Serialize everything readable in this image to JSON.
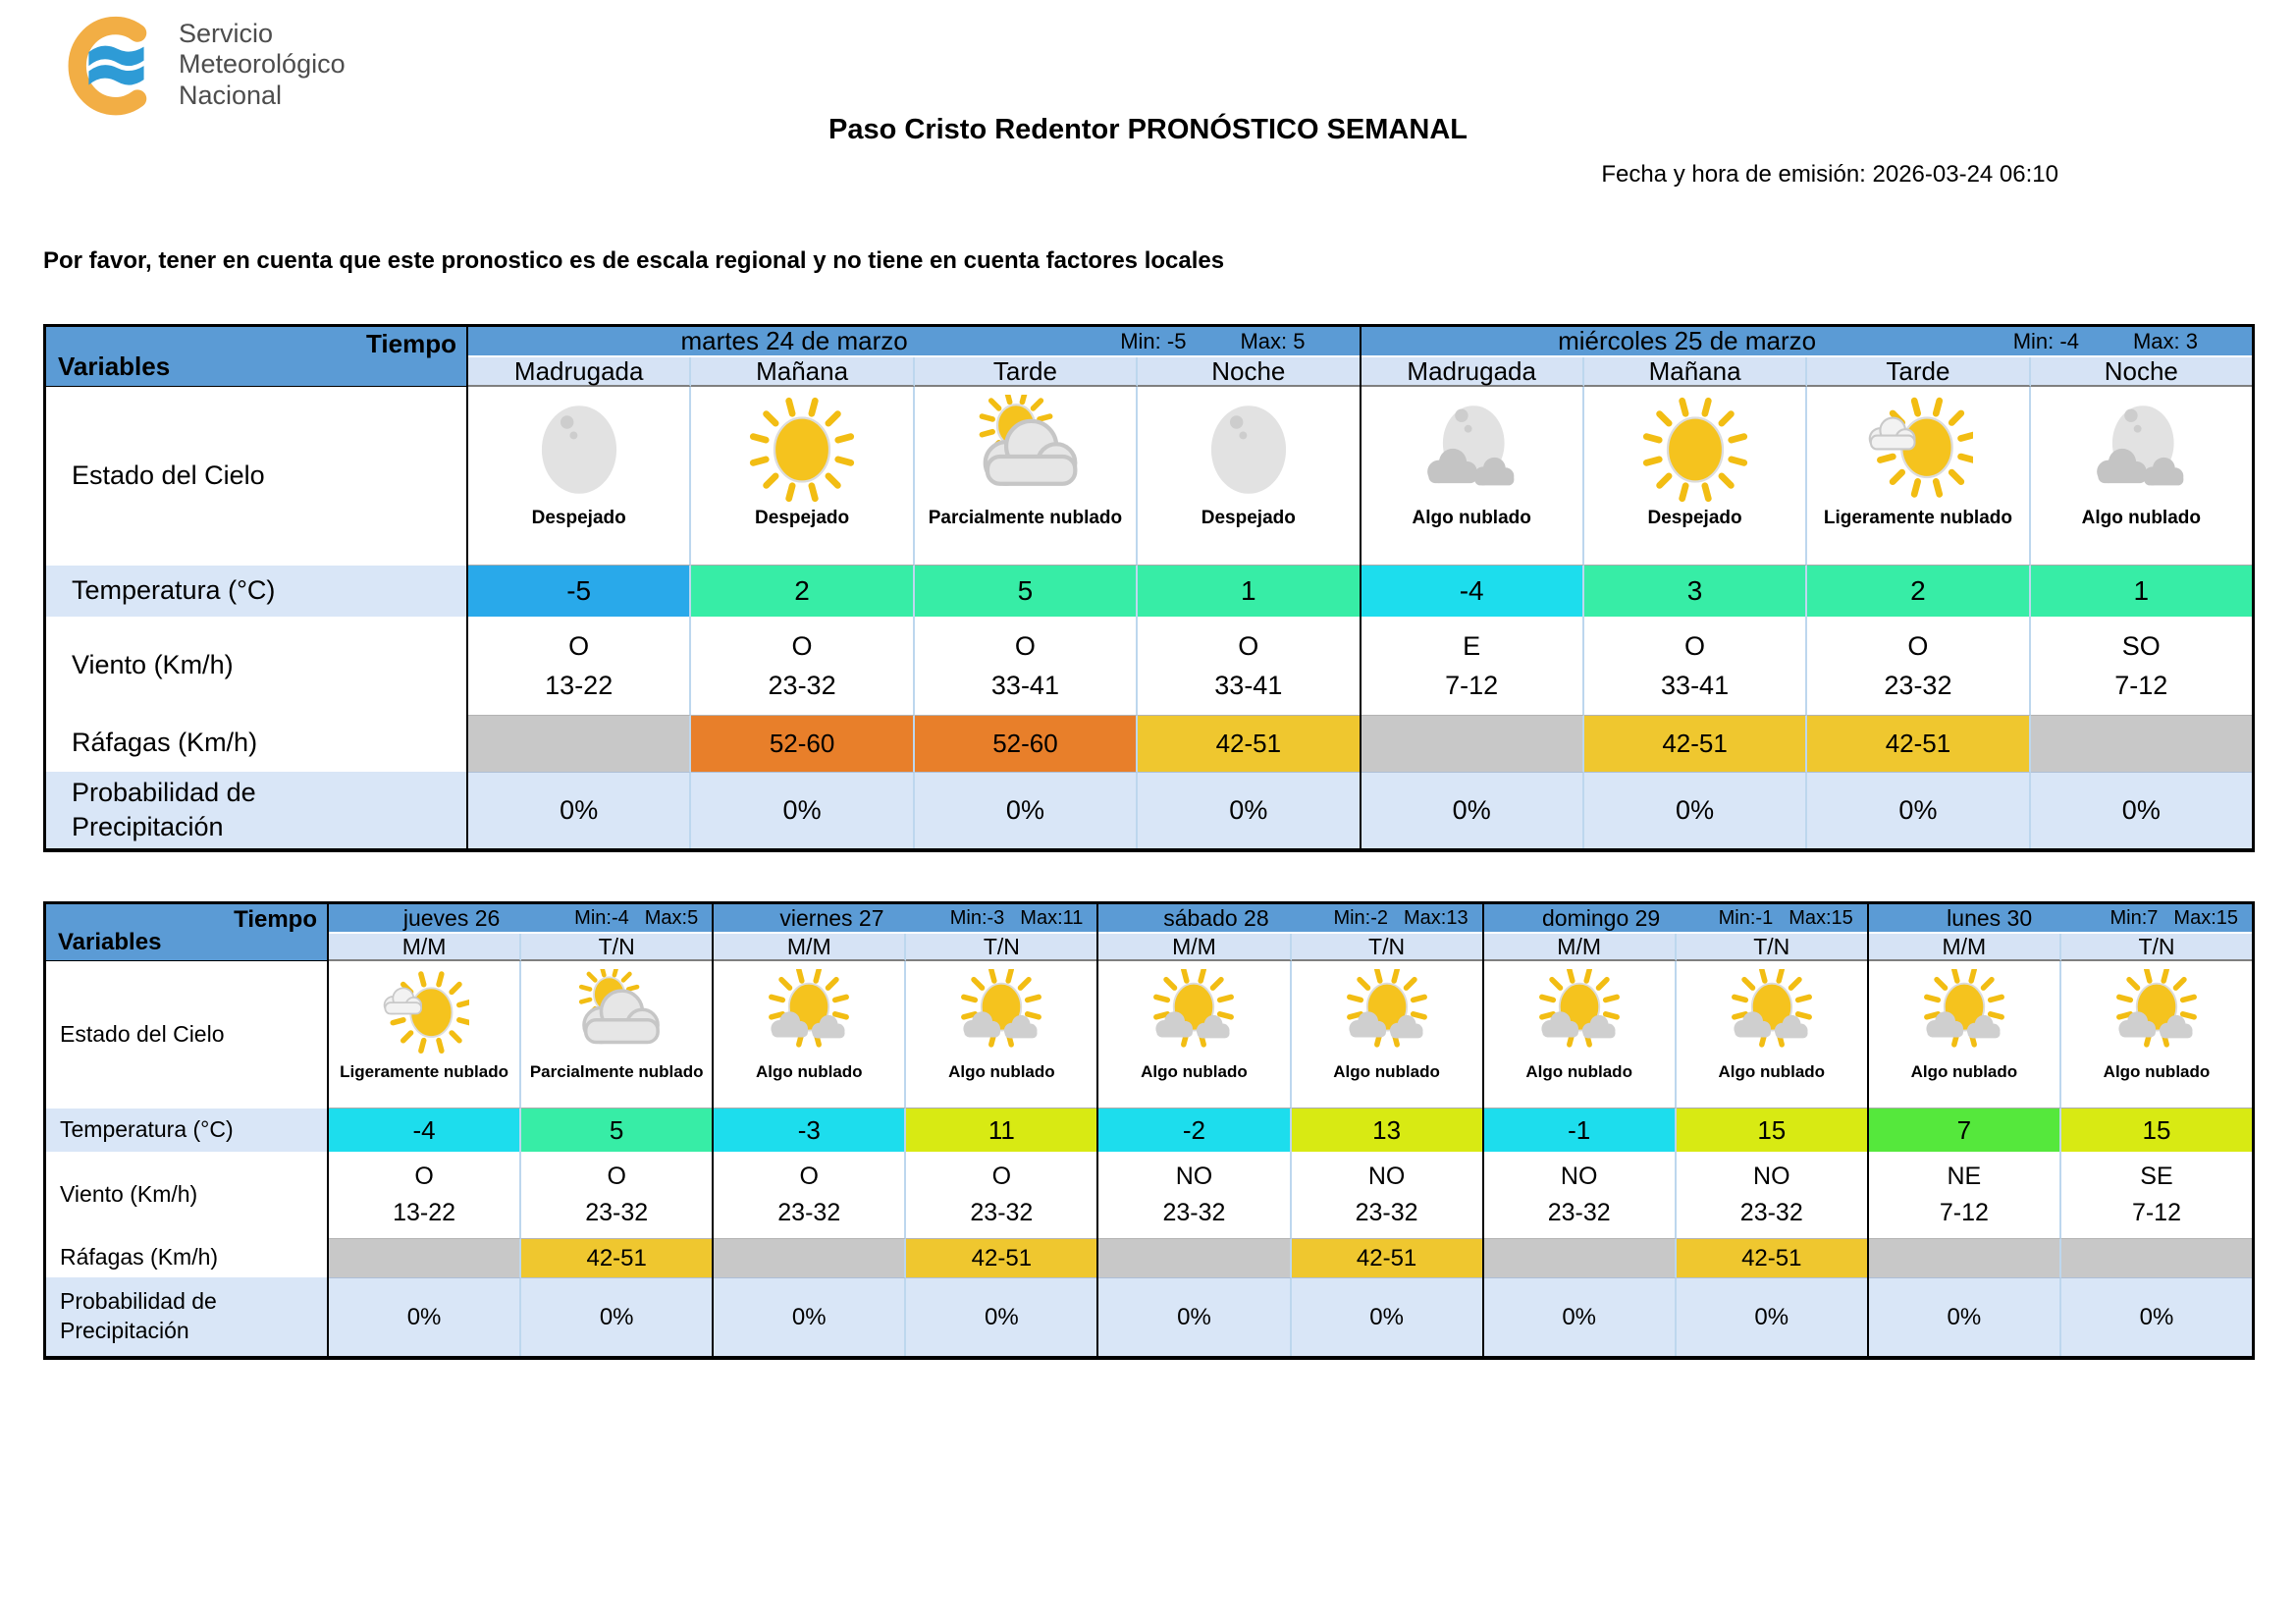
{
  "logo": {
    "lines": [
      "Servicio",
      "Meteorológico",
      "Nacional"
    ],
    "orange": "#F2AE45",
    "blue": "#2E9BD6"
  },
  "header": {
    "title": "Paso Cristo Redentor PRONÓSTICO SEMANAL",
    "emission": "Fecha y hora de emisión: 2026-03-24 06:10",
    "warning": "Por favor, tener en cuenta que este pronostico es de escala regional y no tiene en cuenta factores locales"
  },
  "corner": {
    "tiempo": "Tiempo",
    "variables": "Variables"
  },
  "row_labels": {
    "sky": "Estado del Cielo",
    "temp": "Temperatura (°C)",
    "wind": "Viento (Km/h)",
    "gust": "Ráfagas (Km/h)",
    "pop": [
      "Probabilidad de",
      "Precipitación"
    ]
  },
  "palette": {
    "header_blue": "#5B9BD5",
    "period_bg": "#D6E3F5",
    "light_blue_row": "#D9E6F7",
    "temp_blue": "#29A9EA",
    "temp_cyan": "#1DDDED",
    "temp_mint": "#37EDA6",
    "temp_lime": "#55E83C",
    "temp_chartreuse": "#D8EA13",
    "gust_orange": "#E87F2A",
    "gust_yellow": "#EFC72F",
    "empty_gray": "#C8C8C8",
    "white": "#FFFFFF"
  },
  "table1": {
    "days": [
      {
        "name": "martes 24 de marzo",
        "min": "Min: -5",
        "max": "Max: 5",
        "columns": [
          {
            "period": "Madrugada",
            "icon": "moon",
            "sky": "Despejado",
            "temp": "-5",
            "temp_color": "temp_blue",
            "wind_dir": "O",
            "wind_range": "13-22",
            "gust": "",
            "gust_color": "empty_gray",
            "pop": "0%"
          },
          {
            "period": "Mañana",
            "icon": "sun",
            "sky": "Despejado",
            "temp": "2",
            "temp_color": "temp_mint",
            "wind_dir": "O",
            "wind_range": "23-32",
            "gust": "52-60",
            "gust_color": "gust_orange",
            "pop": "0%"
          },
          {
            "period": "Tarde",
            "icon": "sun-behind-cloud",
            "sky": "Parcialmente nublado",
            "temp": "5",
            "temp_color": "temp_mint",
            "wind_dir": "O",
            "wind_range": "33-41",
            "gust": "52-60",
            "gust_color": "gust_orange",
            "pop": "0%"
          },
          {
            "period": "Noche",
            "icon": "moon",
            "sky": "Despejado",
            "temp": "1",
            "temp_color": "temp_mint",
            "wind_dir": "O",
            "wind_range": "33-41",
            "gust": "42-51",
            "gust_color": "gust_yellow",
            "pop": "0%"
          }
        ]
      },
      {
        "name": "miércoles 25 de marzo",
        "min": "Min: -4",
        "max": "Max: 3",
        "columns": [
          {
            "period": "Madrugada",
            "icon": "moon-clouds",
            "sky": "Algo nublado",
            "temp": "-4",
            "temp_color": "temp_cyan",
            "wind_dir": "E",
            "wind_range": "7-12",
            "gust": "",
            "gust_color": "empty_gray",
            "pop": "0%"
          },
          {
            "period": "Mañana",
            "icon": "sun",
            "sky": "Despejado",
            "temp": "3",
            "temp_color": "temp_mint",
            "wind_dir": "O",
            "wind_range": "33-41",
            "gust": "42-51",
            "gust_color": "gust_yellow",
            "pop": "0%"
          },
          {
            "period": "Tarde",
            "icon": "sun-small-cloud",
            "sky": "Ligeramente nublado",
            "temp": "2",
            "temp_color": "temp_mint",
            "wind_dir": "O",
            "wind_range": "23-32",
            "gust": "42-51",
            "gust_color": "gust_yellow",
            "pop": "0%"
          },
          {
            "period": "Noche",
            "icon": "moon-clouds",
            "sky": "Algo nublado",
            "temp": "1",
            "temp_color": "temp_mint",
            "wind_dir": "SO",
            "wind_range": "7-12",
            "gust": "",
            "gust_color": "empty_gray",
            "pop": "0%"
          }
        ]
      }
    ]
  },
  "table2": {
    "days": [
      {
        "name": "jueves 26",
        "min": "Min:-4",
        "max": "Max:5",
        "columns": [
          {
            "period": "M/M",
            "icon": "sun-small-cloud",
            "sky": "Ligeramente nublado",
            "temp": "-4",
            "temp_color": "temp_cyan",
            "wind_dir": "O",
            "wind_range": "13-22",
            "gust": "",
            "gust_color": "empty_gray",
            "pop": "0%"
          },
          {
            "period": "T/N",
            "icon": "sun-behind-cloud",
            "sky": "Parcialmente nublado",
            "temp": "5",
            "temp_color": "temp_mint",
            "wind_dir": "O",
            "wind_range": "23-32",
            "gust": "42-51",
            "gust_color": "gust_yellow",
            "pop": "0%"
          }
        ]
      },
      {
        "name": "viernes 27",
        "min": "Min:-3",
        "max": "Max:11",
        "columns": [
          {
            "period": "M/M",
            "icon": "sun-clouds",
            "sky": "Algo nublado",
            "temp": "-3",
            "temp_color": "temp_cyan",
            "wind_dir": "O",
            "wind_range": "23-32",
            "gust": "",
            "gust_color": "empty_gray",
            "pop": "0%"
          },
          {
            "period": "T/N",
            "icon": "sun-clouds",
            "sky": "Algo nublado",
            "temp": "11",
            "temp_color": "temp_chartreuse",
            "wind_dir": "O",
            "wind_range": "23-32",
            "gust": "42-51",
            "gust_color": "gust_yellow",
            "pop": "0%"
          }
        ]
      },
      {
        "name": "sábado 28",
        "min": "Min:-2",
        "max": "Max:13",
        "columns": [
          {
            "period": "M/M",
            "icon": "sun-clouds",
            "sky": "Algo nublado",
            "temp": "-2",
            "temp_color": "temp_cyan",
            "wind_dir": "NO",
            "wind_range": "23-32",
            "gust": "",
            "gust_color": "empty_gray",
            "pop": "0%"
          },
          {
            "period": "T/N",
            "icon": "sun-clouds",
            "sky": "Algo nublado",
            "temp": "13",
            "temp_color": "temp_chartreuse",
            "wind_dir": "NO",
            "wind_range": "23-32",
            "gust": "42-51",
            "gust_color": "gust_yellow",
            "pop": "0%"
          }
        ]
      },
      {
        "name": "domingo 29",
        "min": "Min:-1",
        "max": "Max:15",
        "columns": [
          {
            "period": "M/M",
            "icon": "sun-clouds",
            "sky": "Algo nublado",
            "temp": "-1",
            "temp_color": "temp_cyan",
            "wind_dir": "NO",
            "wind_range": "23-32",
            "gust": "",
            "gust_color": "empty_gray",
            "pop": "0%"
          },
          {
            "period": "T/N",
            "icon": "sun-clouds",
            "sky": "Algo nublado",
            "temp": "15",
            "temp_color": "temp_chartreuse",
            "wind_dir": "NO",
            "wind_range": "23-32",
            "gust": "42-51",
            "gust_color": "gust_yellow",
            "pop": "0%"
          }
        ]
      },
      {
        "name": "lunes 30",
        "min": "Min:7",
        "max": "Max:15",
        "columns": [
          {
            "period": "M/M",
            "icon": "sun-clouds",
            "sky": "Algo nublado",
            "temp": "7",
            "temp_color": "temp_lime",
            "wind_dir": "NE",
            "wind_range": "7-12",
            "gust": "",
            "gust_color": "empty_gray",
            "pop": "0%"
          },
          {
            "period": "T/N",
            "icon": "sun-clouds",
            "sky": "Algo nublado",
            "temp": "15",
            "temp_color": "temp_chartreuse",
            "wind_dir": "SE",
            "wind_range": "7-12",
            "gust": "",
            "gust_color": "empty_gray",
            "pop": "0%"
          }
        ]
      }
    ]
  }
}
